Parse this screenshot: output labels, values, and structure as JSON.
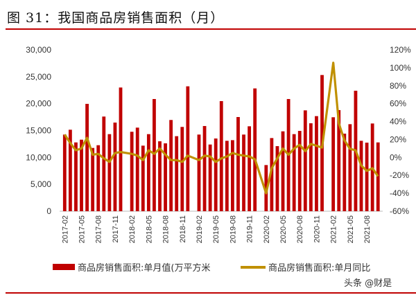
{
  "title": "图 31：我国商品房销售面积（月）",
  "watermark": "头条 @财是",
  "chart_data": {
    "type": "bar+line",
    "colors": {
      "bar": "#c00000",
      "line": "#c09000",
      "accent": "#c00000"
    },
    "x": [
      "2017-02",
      "2017-03",
      "2017-04",
      "2017-05",
      "2017-06",
      "2017-07",
      "2017-08",
      "2017-09",
      "2017-10",
      "2017-11",
      "2017-12",
      "2018-01",
      "2018-02",
      "2018-03",
      "2018-04",
      "2018-05",
      "2018-06",
      "2018-07",
      "2018-08",
      "2018-09",
      "2018-10",
      "2018-11",
      "2018-12",
      "2019-01",
      "2019-02",
      "2019-03",
      "2019-04",
      "2019-05",
      "2019-06",
      "2019-07",
      "2019-08",
      "2019-09",
      "2019-10",
      "2019-11",
      "2019-12",
      "2020-01",
      "2020-02",
      "2020-03",
      "2020-04",
      "2020-05",
      "2020-06",
      "2020-07",
      "2020-08",
      "2020-09",
      "2020-10",
      "2020-11",
      "2020-12",
      "2021-01",
      "2021-02",
      "2021-03",
      "2021-04",
      "2021-05",
      "2021-06",
      "2021-07",
      "2021-08",
      "2021-09",
      "2021-10"
    ],
    "x_tick_labels": [
      "2017-02",
      "2017-05",
      "2017-08",
      "2017-11",
      "2018-02",
      "2018-05",
      "2018-08",
      "2018-11",
      "2019-02",
      "2019-05",
      "2019-08",
      "2019-11",
      "2020-02",
      "2020-05",
      "2020-08",
      "2020-11",
      "2021-02",
      "2021-05",
      "2021-08"
    ],
    "series": [
      {
        "name": "商品房销售面积:单月值(万平方米",
        "type": "bar",
        "axis": "left",
        "values": [
          14250,
          15150,
          12790,
          13300,
          19960,
          11760,
          12270,
          17600,
          14330,
          16480,
          23000,
          null,
          14770,
          15540,
          12190,
          14330,
          20860,
          13000,
          12620,
          16960,
          13950,
          15670,
          23220,
          null,
          14250,
          15840,
          12400,
          13520,
          20470,
          13090,
          13210,
          17510,
          14250,
          15790,
          22830,
          null,
          8580,
          13600,
          12100,
          14850,
          20860,
          14330,
          14930,
          18750,
          16350,
          17680,
          25320,
          null,
          17470,
          18800,
          14420,
          16180,
          22400,
          13090,
          12750,
          16310,
          12790
        ]
      },
      {
        "name": "商品房销售面积:单月同比",
        "type": "line",
        "axis": "right",
        "unit": "%",
        "values": [
          25.5,
          16,
          8,
          10,
          22,
          3,
          4,
          -1,
          -5,
          5,
          6,
          null,
          4,
          2,
          -3,
          8,
          4,
          10,
          3,
          -3,
          -3,
          -5,
          2,
          null,
          -3,
          2,
          1,
          -5,
          -1,
          1,
          5,
          3,
          2,
          1,
          -2,
          null,
          -40,
          -12,
          -1,
          10,
          3,
          10,
          14,
          7,
          15,
          13,
          11,
          null,
          105.6,
          38,
          19,
          9.5,
          8,
          -9,
          -15,
          -12,
          -21
        ]
      }
    ],
    "y_left": {
      "ylim": [
        0,
        30000
      ],
      "ticks": [
        "0",
        "5,000",
        "10,000",
        "15,000",
        "20,000",
        "25,000",
        "30,000"
      ]
    },
    "y_right": {
      "ylim": [
        -60,
        120
      ],
      "ticks": [
        "-60%",
        "-40%",
        "-20%",
        "0%",
        "20%",
        "40%",
        "60%",
        "80%",
        "100%",
        "120%"
      ]
    },
    "grid": false,
    "legend_placement": "bottom"
  }
}
